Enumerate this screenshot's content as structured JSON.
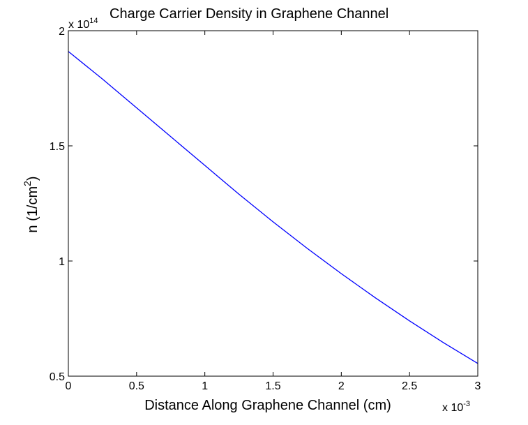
{
  "chart_data": {
    "type": "line",
    "title": "Charge Carrier Density in Graphene Channel",
    "xlabel": "Distance Along Graphene Channel (cm)",
    "ylabel_main": "n (1/cm",
    "ylabel_sup": "2",
    "ylabel_close": ")",
    "x_exponent_base": "x 10",
    "x_exponent_power": "-3",
    "y_exponent_base": "x 10",
    "y_exponent_power": "14",
    "xlim": [
      0,
      3
    ],
    "ylim": [
      0.5,
      2
    ],
    "xticks": [
      0,
      0.5,
      1,
      1.5,
      2,
      2.5,
      3
    ],
    "xtick_labels": [
      "0",
      "0.5",
      "1",
      "1.5",
      "2",
      "2.5",
      "3"
    ],
    "yticks": [
      0.5,
      1,
      1.5,
      2
    ],
    "ytick_labels": [
      "0.5",
      "1",
      "1.5",
      "2"
    ],
    "grid": false,
    "series": [
      {
        "color": "#0000ff",
        "x": [
          0,
          0.25,
          0.5,
          0.75,
          1,
          1.25,
          1.5,
          1.75,
          2,
          2.25,
          2.5,
          2.75,
          3
        ],
        "values": [
          1.91,
          1.79,
          1.665,
          1.54,
          1.415,
          1.29,
          1.17,
          1.055,
          0.945,
          0.84,
          0.74,
          0.645,
          0.555
        ]
      }
    ]
  }
}
